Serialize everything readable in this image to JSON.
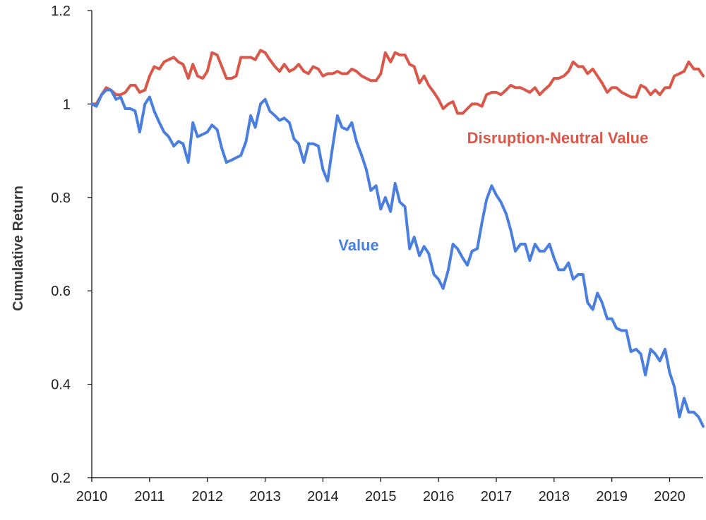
{
  "chart_data": {
    "type": "line",
    "title": "",
    "xlabel": "",
    "ylabel": "Cumulative Return",
    "xlim": [
      2010,
      2020.58
    ],
    "ylim": [
      0.2,
      1.2
    ],
    "x_ticks": [
      "2010",
      "2011",
      "2012",
      "2013",
      "2014",
      "2015",
      "2016",
      "2017",
      "2018",
      "2019",
      "2020"
    ],
    "y_ticks": [
      "0.2",
      "0.4",
      "0.6",
      "0.8",
      "1",
      "1.2"
    ],
    "grid": false,
    "legend": "none",
    "series": [
      {
        "name": "Disruption-Neutral Value",
        "color": "#d9584a",
        "points": [
          [
            2010.0,
            1.0
          ],
          [
            2010.08,
            1.0
          ],
          [
            2010.17,
            1.02
          ],
          [
            2010.25,
            1.035
          ],
          [
            2010.33,
            1.03
          ],
          [
            2010.42,
            1.02
          ],
          [
            2010.5,
            1.02
          ],
          [
            2010.58,
            1.025
          ],
          [
            2010.67,
            1.04
          ],
          [
            2010.75,
            1.04
          ],
          [
            2010.83,
            1.025
          ],
          [
            2010.92,
            1.03
          ],
          [
            2011.0,
            1.06
          ],
          [
            2011.08,
            1.08
          ],
          [
            2011.17,
            1.075
          ],
          [
            2011.25,
            1.09
          ],
          [
            2011.33,
            1.095
          ],
          [
            2011.42,
            1.1
          ],
          [
            2011.5,
            1.09
          ],
          [
            2011.58,
            1.085
          ],
          [
            2011.67,
            1.055
          ],
          [
            2011.75,
            1.085
          ],
          [
            2011.83,
            1.06
          ],
          [
            2011.92,
            1.055
          ],
          [
            2012.0,
            1.07
          ],
          [
            2012.08,
            1.11
          ],
          [
            2012.17,
            1.105
          ],
          [
            2012.25,
            1.08
          ],
          [
            2012.33,
            1.055
          ],
          [
            2012.42,
            1.055
          ],
          [
            2012.5,
            1.06
          ],
          [
            2012.58,
            1.1
          ],
          [
            2012.67,
            1.1
          ],
          [
            2012.75,
            1.1
          ],
          [
            2012.83,
            1.095
          ],
          [
            2012.92,
            1.115
          ],
          [
            2013.0,
            1.11
          ],
          [
            2013.08,
            1.095
          ],
          [
            2013.17,
            1.08
          ],
          [
            2013.25,
            1.07
          ],
          [
            2013.33,
            1.085
          ],
          [
            2013.42,
            1.07
          ],
          [
            2013.5,
            1.075
          ],
          [
            2013.58,
            1.085
          ],
          [
            2013.67,
            1.07
          ],
          [
            2013.75,
            1.065
          ],
          [
            2013.83,
            1.08
          ],
          [
            2013.92,
            1.075
          ],
          [
            2014.0,
            1.06
          ],
          [
            2014.08,
            1.065
          ],
          [
            2014.17,
            1.065
          ],
          [
            2014.25,
            1.07
          ],
          [
            2014.33,
            1.065
          ],
          [
            2014.42,
            1.065
          ],
          [
            2014.5,
            1.075
          ],
          [
            2014.58,
            1.07
          ],
          [
            2014.67,
            1.06
          ],
          [
            2014.75,
            1.055
          ],
          [
            2014.83,
            1.05
          ],
          [
            2014.92,
            1.05
          ],
          [
            2015.0,
            1.065
          ],
          [
            2015.08,
            1.11
          ],
          [
            2015.17,
            1.09
          ],
          [
            2015.25,
            1.11
          ],
          [
            2015.33,
            1.105
          ],
          [
            2015.42,
            1.105
          ],
          [
            2015.5,
            1.085
          ],
          [
            2015.58,
            1.08
          ],
          [
            2015.67,
            1.045
          ],
          [
            2015.75,
            1.06
          ],
          [
            2015.83,
            1.04
          ],
          [
            2015.92,
            1.025
          ],
          [
            2016.0,
            1.01
          ],
          [
            2016.08,
            0.99
          ],
          [
            2016.17,
            1.0
          ],
          [
            2016.25,
            1.005
          ],
          [
            2016.33,
            0.98
          ],
          [
            2016.42,
            0.98
          ],
          [
            2016.5,
            0.99
          ],
          [
            2016.58,
            1.0
          ],
          [
            2016.67,
            1.0
          ],
          [
            2016.75,
            0.995
          ],
          [
            2016.83,
            1.02
          ],
          [
            2016.92,
            1.025
          ],
          [
            2017.0,
            1.025
          ],
          [
            2017.08,
            1.02
          ],
          [
            2017.17,
            1.03
          ],
          [
            2017.25,
            1.04
          ],
          [
            2017.33,
            1.035
          ],
          [
            2017.42,
            1.035
          ],
          [
            2017.5,
            1.03
          ],
          [
            2017.58,
            1.025
          ],
          [
            2017.67,
            1.035
          ],
          [
            2017.75,
            1.02
          ],
          [
            2017.83,
            1.03
          ],
          [
            2017.92,
            1.04
          ],
          [
            2018.0,
            1.055
          ],
          [
            2018.08,
            1.055
          ],
          [
            2018.17,
            1.06
          ],
          [
            2018.25,
            1.07
          ],
          [
            2018.33,
            1.09
          ],
          [
            2018.42,
            1.08
          ],
          [
            2018.5,
            1.08
          ],
          [
            2018.58,
            1.065
          ],
          [
            2018.67,
            1.075
          ],
          [
            2018.75,
            1.06
          ],
          [
            2018.83,
            1.045
          ],
          [
            2018.92,
            1.025
          ],
          [
            2019.0,
            1.035
          ],
          [
            2019.08,
            1.035
          ],
          [
            2019.17,
            1.025
          ],
          [
            2019.25,
            1.02
          ],
          [
            2019.33,
            1.015
          ],
          [
            2019.42,
            1.015
          ],
          [
            2019.5,
            1.04
          ],
          [
            2019.58,
            1.035
          ],
          [
            2019.67,
            1.02
          ],
          [
            2019.75,
            1.03
          ],
          [
            2019.83,
            1.02
          ],
          [
            2019.92,
            1.035
          ],
          [
            2020.0,
            1.035
          ],
          [
            2020.08,
            1.06
          ],
          [
            2020.17,
            1.065
          ],
          [
            2020.25,
            1.07
          ],
          [
            2020.33,
            1.09
          ],
          [
            2020.42,
            1.075
          ],
          [
            2020.5,
            1.075
          ],
          [
            2020.58,
            1.06
          ]
        ]
      },
      {
        "name": "Value",
        "color": "#4a7fdd",
        "points": [
          [
            2010.0,
            1.0
          ],
          [
            2010.08,
            0.995
          ],
          [
            2010.17,
            1.02
          ],
          [
            2010.25,
            1.03
          ],
          [
            2010.33,
            1.03
          ],
          [
            2010.42,
            1.01
          ],
          [
            2010.5,
            1.015
          ],
          [
            2010.58,
            0.99
          ],
          [
            2010.67,
            0.99
          ],
          [
            2010.75,
            0.985
          ],
          [
            2010.83,
            0.94
          ],
          [
            2010.92,
            1.0
          ],
          [
            2011.0,
            1.015
          ],
          [
            2011.08,
            0.985
          ],
          [
            2011.17,
            0.96
          ],
          [
            2011.25,
            0.94
          ],
          [
            2011.33,
            0.93
          ],
          [
            2011.42,
            0.91
          ],
          [
            2011.5,
            0.92
          ],
          [
            2011.58,
            0.915
          ],
          [
            2011.67,
            0.875
          ],
          [
            2011.75,
            0.96
          ],
          [
            2011.83,
            0.93
          ],
          [
            2011.92,
            0.935
          ],
          [
            2012.0,
            0.94
          ],
          [
            2012.08,
            0.955
          ],
          [
            2012.17,
            0.945
          ],
          [
            2012.25,
            0.905
          ],
          [
            2012.33,
            0.875
          ],
          [
            2012.42,
            0.88
          ],
          [
            2012.5,
            0.885
          ],
          [
            2012.58,
            0.89
          ],
          [
            2012.67,
            0.92
          ],
          [
            2012.75,
            0.975
          ],
          [
            2012.83,
            0.95
          ],
          [
            2012.92,
            1.0
          ],
          [
            2013.0,
            1.01
          ],
          [
            2013.08,
            0.985
          ],
          [
            2013.17,
            0.975
          ],
          [
            2013.25,
            0.965
          ],
          [
            2013.33,
            0.97
          ],
          [
            2013.42,
            0.96
          ],
          [
            2013.5,
            0.925
          ],
          [
            2013.58,
            0.915
          ],
          [
            2013.67,
            0.875
          ],
          [
            2013.75,
            0.915
          ],
          [
            2013.83,
            0.915
          ],
          [
            2013.92,
            0.91
          ],
          [
            2014.0,
            0.86
          ],
          [
            2014.08,
            0.835
          ],
          [
            2014.17,
            0.91
          ],
          [
            2014.25,
            0.975
          ],
          [
            2014.33,
            0.95
          ],
          [
            2014.42,
            0.945
          ],
          [
            2014.5,
            0.96
          ],
          [
            2014.58,
            0.92
          ],
          [
            2014.67,
            0.89
          ],
          [
            2014.75,
            0.86
          ],
          [
            2014.83,
            0.815
          ],
          [
            2014.92,
            0.825
          ],
          [
            2015.0,
            0.775
          ],
          [
            2015.08,
            0.8
          ],
          [
            2015.17,
            0.77
          ],
          [
            2015.25,
            0.83
          ],
          [
            2015.33,
            0.79
          ],
          [
            2015.42,
            0.78
          ],
          [
            2015.5,
            0.69
          ],
          [
            2015.58,
            0.715
          ],
          [
            2015.67,
            0.675
          ],
          [
            2015.75,
            0.695
          ],
          [
            2015.83,
            0.68
          ],
          [
            2015.92,
            0.635
          ],
          [
            2016.0,
            0.625
          ],
          [
            2016.08,
            0.605
          ],
          [
            2016.17,
            0.645
          ],
          [
            2016.25,
            0.7
          ],
          [
            2016.33,
            0.69
          ],
          [
            2016.42,
            0.67
          ],
          [
            2016.5,
            0.655
          ],
          [
            2016.58,
            0.685
          ],
          [
            2016.67,
            0.69
          ],
          [
            2016.75,
            0.745
          ],
          [
            2016.83,
            0.795
          ],
          [
            2016.92,
            0.825
          ],
          [
            2017.0,
            0.805
          ],
          [
            2017.08,
            0.79
          ],
          [
            2017.17,
            0.765
          ],
          [
            2017.25,
            0.73
          ],
          [
            2017.33,
            0.685
          ],
          [
            2017.42,
            0.7
          ],
          [
            2017.5,
            0.7
          ],
          [
            2017.58,
            0.665
          ],
          [
            2017.67,
            0.7
          ],
          [
            2017.75,
            0.685
          ],
          [
            2017.83,
            0.685
          ],
          [
            2017.92,
            0.7
          ],
          [
            2018.0,
            0.67
          ],
          [
            2018.08,
            0.645
          ],
          [
            2018.17,
            0.645
          ],
          [
            2018.25,
            0.66
          ],
          [
            2018.33,
            0.625
          ],
          [
            2018.42,
            0.635
          ],
          [
            2018.5,
            0.635
          ],
          [
            2018.58,
            0.575
          ],
          [
            2018.67,
            0.56
          ],
          [
            2018.75,
            0.595
          ],
          [
            2018.83,
            0.575
          ],
          [
            2018.92,
            0.54
          ],
          [
            2019.0,
            0.54
          ],
          [
            2019.08,
            0.52
          ],
          [
            2019.17,
            0.515
          ],
          [
            2019.25,
            0.515
          ],
          [
            2019.33,
            0.47
          ],
          [
            2019.42,
            0.475
          ],
          [
            2019.5,
            0.465
          ],
          [
            2019.58,
            0.42
          ],
          [
            2019.67,
            0.475
          ],
          [
            2019.75,
            0.465
          ],
          [
            2019.83,
            0.45
          ],
          [
            2019.92,
            0.475
          ],
          [
            2020.0,
            0.425
          ],
          [
            2020.08,
            0.395
          ],
          [
            2020.17,
            0.33
          ],
          [
            2020.25,
            0.37
          ],
          [
            2020.33,
            0.34
          ],
          [
            2020.42,
            0.34
          ],
          [
            2020.5,
            0.33
          ],
          [
            2020.58,
            0.31
          ]
        ]
      }
    ]
  }
}
